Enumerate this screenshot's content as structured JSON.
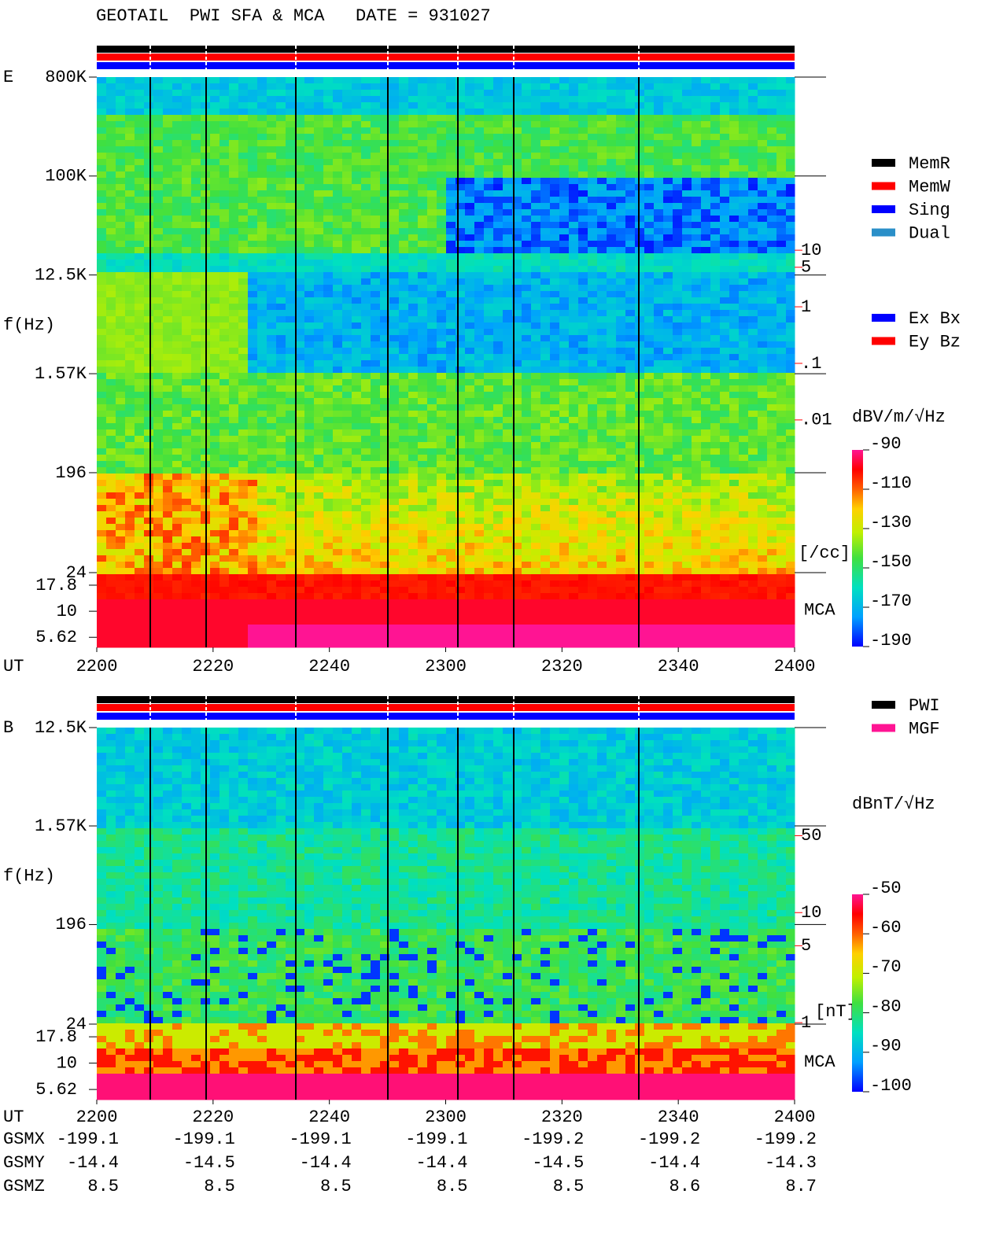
{
  "title": "GEOTAIL  PWI SFA & MCA   DATE = 931027",
  "chart_data": [
    {
      "type": "spectrogram",
      "panel_label": "E",
      "ylabel": "f(Hz)",
      "xlabel": "UT",
      "yscale": "log",
      "ylim": [
        24,
        800000
      ],
      "yticks": [
        {
          "value": 800000,
          "label": "800K"
        },
        {
          "value": 100000,
          "label": "100K"
        },
        {
          "value": 12500,
          "label": "12.5K"
        },
        {
          "value": 1570,
          "label": "1.57K"
        },
        196,
        24
      ],
      "mca_label": "MCA",
      "mca_ylim": [
        4.5,
        23.5
      ],
      "mca_yticks": [
        17.8,
        10,
        5.62
      ],
      "xticks": [
        "2200",
        "2220",
        "2240",
        "2300",
        "2320",
        "2340",
        "2400"
      ],
      "y2scale": "log",
      "y2lim": [
        2e-05,
        11500
      ],
      "y2label": "[/cc]",
      "y2color": "#ff0000",
      "y2ticks": [
        10,
        5,
        1,
        {
          "value": 0.1,
          "label": ".1"
        },
        {
          "value": 0.01,
          "label": ".01"
        }
      ],
      "colorbar": {
        "label": "dBV/m/√Hz",
        "lim": [
          -190,
          -90
        ],
        "ticks": [
          -90,
          -110,
          -130,
          -150,
          -170,
          -190
        ]
      },
      "legend": [
        {
          "name": "MemR",
          "color": "#000000"
        },
        {
          "name": "MemW",
          "color": "#ff0000"
        },
        {
          "name": "Sing",
          "color": "#0000ff"
        },
        {
          "name": "Dual",
          "color": "#2a8fc8"
        }
      ],
      "legend2": [
        {
          "name": "Ex Bx",
          "color": "#0000ff"
        },
        {
          "name": "Ey Bz",
          "color": "#ff0000"
        }
      ]
    },
    {
      "type": "spectrogram",
      "panel_label": "B",
      "ylabel": "f(Hz)",
      "xlabel": "UT",
      "yscale": "log",
      "ylim": [
        24,
        12500
      ],
      "yticks": [
        {
          "value": 12500,
          "label": "12.5K"
        },
        {
          "value": 1570,
          "label": "1.57K"
        },
        196,
        24
      ],
      "mca_label": "MCA",
      "mca_ylim": [
        4.5,
        23.5
      ],
      "mca_yticks": [
        17.8,
        10,
        5.62
      ],
      "xticks": [
        "2200",
        "2220",
        "2240",
        "2300",
        "2320",
        "2340",
        "2400"
      ],
      "y2scale": "log",
      "y2lim": [
        0.97,
        480
      ],
      "y2label": "[nT]",
      "y2color": "#ff0000",
      "y2ticks": [
        50,
        10,
        5,
        1
      ],
      "colorbar": {
        "label": "dBnT/√Hz",
        "lim": [
          -100,
          -50
        ],
        "ticks": [
          -50,
          -60,
          -70,
          -80,
          -90,
          -100
        ]
      },
      "legend": [
        {
          "name": "PWI",
          "color": "#000000"
        },
        {
          "name": "MGF",
          "color": "#ff1493"
        }
      ],
      "orbit": [
        {
          "label": "GSMX",
          "values": [
            -199.1,
            -199.1,
            -199.1,
            -199.1,
            -199.2,
            -199.2,
            -199.2
          ]
        },
        {
          "label": "GSMY",
          "values": [
            -14.4,
            -14.5,
            -14.4,
            -14.4,
            -14.5,
            -14.4,
            -14.3
          ]
        },
        {
          "label": "GSMZ",
          "values": [
            8.5,
            8.5,
            8.5,
            8.5,
            8.5,
            8.6,
            8.7
          ]
        }
      ]
    }
  ]
}
